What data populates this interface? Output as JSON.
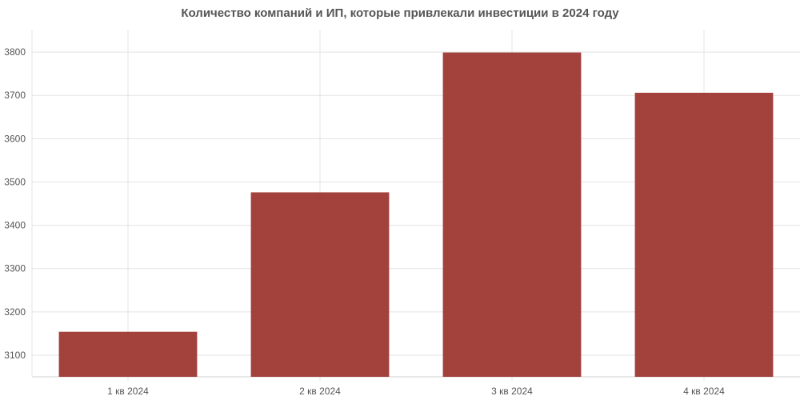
{
  "chart_data": {
    "type": "bar",
    "title": "Количество компаний и ИП, которые привлекали инвестиции в 2024 году",
    "xlabel": "",
    "ylabel": "",
    "categories": [
      "1 кв 2024",
      "2 кв 2024",
      "3 кв 2024",
      "4 кв 2024"
    ],
    "values": [
      3154,
      3476,
      3799,
      3706
    ],
    "ylim": [
      3050,
      3850
    ],
    "yticks": [
      3100,
      3200,
      3300,
      3400,
      3500,
      3600,
      3700,
      3800
    ],
    "grid": true,
    "legend": "none",
    "colors": {
      "bar": "#9e3731",
      "grid": "#e3e3e3",
      "axis_text": "#555555"
    }
  }
}
